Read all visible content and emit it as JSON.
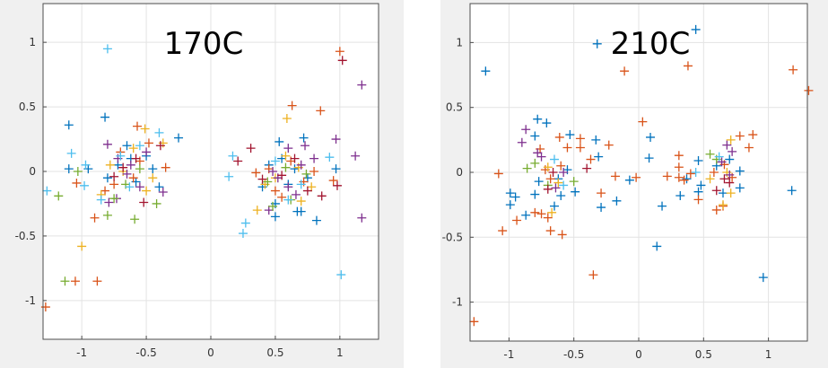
{
  "chart_data": [
    {
      "type": "scatter",
      "title": "170C",
      "xlim": [
        -1.3,
        1.3
      ],
      "ylim": [
        -1.3,
        1.3
      ],
      "xticks": [
        -1,
        -0.5,
        0,
        0.5,
        1
      ],
      "xtick_labels": [
        "-1",
        "-0.5",
        "0",
        "0.5",
        "1"
      ],
      "yticks": [
        1,
        0.5,
        0,
        -0.5,
        -1
      ],
      "ytick_labels": [
        "1",
        "0.5",
        "0",
        "-0.5",
        "-1"
      ],
      "grid": true,
      "marker": "plus",
      "series": [
        {
          "color": "#0072BD",
          "points": [
            [
              -0.82,
              0.42
            ],
            [
              -1.1,
              0.36
            ],
            [
              -1.1,
              0.02
            ],
            [
              -0.25,
              0.26
            ],
            [
              0.72,
              0.26
            ],
            [
              0.53,
              0.23
            ],
            [
              0.5,
              -0.35
            ],
            [
              0.67,
              -0.31
            ],
            [
              0.7,
              -0.31
            ],
            [
              0.82,
              -0.38
            ],
            [
              -0.95,
              0.02
            ],
            [
              0.97,
              0.02
            ],
            [
              0.5,
              -0.25
            ],
            [
              -0.4,
              -0.12
            ],
            [
              -0.65,
              0.2
            ],
            [
              -0.72,
              0.05
            ],
            [
              -0.58,
              -0.08
            ],
            [
              -0.5,
              0.12
            ],
            [
              -0.8,
              -0.05
            ],
            [
              -0.62,
              0.1
            ],
            [
              -0.45,
              0.02
            ],
            [
              0.45,
              0.05
            ],
            [
              0.6,
              -0.1
            ],
            [
              0.55,
              0.1
            ],
            [
              0.75,
              -0.05
            ],
            [
              0.4,
              -0.12
            ],
            [
              0.65,
              0.02
            ]
          ]
        },
        {
          "color": "#D95319",
          "points": [
            [
              -1.28,
              -1.05
            ],
            [
              -1.05,
              -0.85
            ],
            [
              -0.88,
              -0.85
            ],
            [
              -0.9,
              -0.36
            ],
            [
              -1.04,
              -0.09
            ],
            [
              0.63,
              0.51
            ],
            [
              0.85,
              0.47
            ],
            [
              1.0,
              0.93
            ],
            [
              -0.57,
              0.35
            ],
            [
              -0.35,
              0.03
            ],
            [
              0.95,
              -0.07
            ],
            [
              -0.82,
              -0.15
            ],
            [
              0.35,
              -0.01
            ],
            [
              -0.7,
              0.15
            ],
            [
              -0.6,
              -0.05
            ],
            [
              -0.48,
              0.22
            ],
            [
              -0.75,
              -0.1
            ],
            [
              -0.55,
              0.08
            ],
            [
              0.5,
              -0.15
            ],
            [
              0.62,
              0.08
            ],
            [
              0.72,
              -0.08
            ],
            [
              0.45,
              0.02
            ],
            [
              0.8,
              0.0
            ],
            [
              0.55,
              -0.2
            ]
          ]
        },
        {
          "color": "#EDB120",
          "points": [
            [
              -1.0,
              -0.58
            ],
            [
              0.59,
              0.41
            ],
            [
              0.36,
              -0.3
            ],
            [
              -0.51,
              0.33
            ],
            [
              -0.37,
              0.22
            ],
            [
              0.7,
              -0.23
            ],
            [
              -0.85,
              -0.18
            ],
            [
              0.5,
              -0.05
            ],
            [
              -0.5,
              -0.15
            ],
            [
              -0.68,
              0.0
            ],
            [
              -0.6,
              0.18
            ],
            [
              -0.78,
              0.05
            ],
            [
              -0.45,
              -0.05
            ],
            [
              0.58,
              0.12
            ],
            [
              0.68,
              0.03
            ],
            [
              0.42,
              -0.1
            ],
            [
              0.78,
              -0.12
            ]
          ]
        },
        {
          "color": "#7E2F8E",
          "points": [
            [
              1.17,
              0.67
            ],
            [
              1.17,
              -0.36
            ],
            [
              1.12,
              0.12
            ],
            [
              0.97,
              0.25
            ],
            [
              -0.37,
              -0.16
            ],
            [
              0.45,
              -0.3
            ],
            [
              -0.8,
              0.21
            ],
            [
              -0.79,
              -0.24
            ],
            [
              -0.73,
              -0.21
            ],
            [
              0.6,
              0.18
            ],
            [
              0.73,
              0.2
            ],
            [
              0.8,
              0.1
            ],
            [
              -0.65,
              -0.02
            ],
            [
              -0.55,
              -0.12
            ],
            [
              -0.72,
              0.1
            ],
            [
              -0.5,
              0.15
            ],
            [
              -0.62,
              0.05
            ],
            [
              0.52,
              -0.05
            ],
            [
              0.6,
              -0.12
            ],
            [
              0.7,
              0.05
            ],
            [
              0.48,
              0.0
            ],
            [
              0.66,
              -0.18
            ]
          ]
        },
        {
          "color": "#77AC30",
          "points": [
            [
              -1.13,
              -0.85
            ],
            [
              -1.18,
              -0.19
            ],
            [
              -0.8,
              -0.34
            ],
            [
              -0.59,
              -0.37
            ],
            [
              -0.42,
              -0.25
            ],
            [
              -1.03,
              0.0
            ],
            [
              -0.75,
              -0.21
            ],
            [
              0.48,
              -0.27
            ],
            [
              0.62,
              -0.22
            ],
            [
              -0.66,
              -0.1
            ],
            [
              -0.55,
              0.02
            ],
            [
              0.44,
              -0.08
            ],
            [
              0.58,
              0.03
            ],
            [
              0.74,
              -0.02
            ]
          ]
        },
        {
          "color": "#4DBEEE",
          "points": [
            [
              -0.8,
              0.95
            ],
            [
              -1.27,
              -0.15
            ],
            [
              -1.08,
              0.14
            ],
            [
              -0.98,
              -0.11
            ],
            [
              -0.97,
              0.05
            ],
            [
              -0.4,
              0.3
            ],
            [
              -0.55,
              0.2
            ],
            [
              0.14,
              -0.04
            ],
            [
              0.17,
              0.12
            ],
            [
              0.27,
              -0.4
            ],
            [
              0.25,
              -0.48
            ],
            [
              1.01,
              -0.8
            ],
            [
              0.92,
              0.11
            ],
            [
              -0.85,
              -0.22
            ],
            [
              0.6,
              -0.22
            ],
            [
              -0.63,
              -0.12
            ],
            [
              0.5,
              0.08
            ],
            [
              0.7,
              -0.1
            ],
            [
              -0.7,
              0.12
            ]
          ]
        },
        {
          "color": "#A2142F",
          "points": [
            [
              1.02,
              0.86
            ],
            [
              0.31,
              0.18
            ],
            [
              0.21,
              0.08
            ],
            [
              0.98,
              -0.11
            ],
            [
              0.86,
              -0.19
            ],
            [
              -0.52,
              -0.24
            ],
            [
              -0.39,
              0.2
            ],
            [
              0.75,
              -0.15
            ],
            [
              -0.68,
              0.03
            ],
            [
              -0.58,
              0.1
            ],
            [
              -0.75,
              -0.04
            ],
            [
              0.55,
              -0.03
            ],
            [
              0.65,
              0.1
            ],
            [
              0.4,
              -0.06
            ]
          ]
        }
      ]
    },
    {
      "type": "scatter",
      "title": "210C",
      "xlim": [
        -1.3,
        1.3
      ],
      "ylim": [
        -1.3,
        1.3
      ],
      "xticks": [
        -1,
        -0.5,
        0,
        0.5,
        1
      ],
      "xtick_labels": [
        "-1",
        "-0.5",
        "0",
        "0.5",
        "1"
      ],
      "yticks": [
        1,
        0.5,
        0,
        -0.5,
        -1
      ],
      "ytick_labels": [
        "1",
        "0.5",
        "0",
        "-0.5",
        "-1"
      ],
      "grid": true,
      "marker": "plus",
      "series": [
        {
          "color": "#0072BD",
          "points": [
            [
              -1.18,
              0.78
            ],
            [
              -0.32,
              0.99
            ],
            [
              0.44,
              1.1
            ],
            [
              -0.78,
              0.41
            ],
            [
              -0.71,
              0.38
            ],
            [
              -0.8,
              0.28
            ],
            [
              -0.53,
              0.29
            ],
            [
              -0.33,
              0.25
            ],
            [
              -0.31,
              0.12
            ],
            [
              0.09,
              0.27
            ],
            [
              0.08,
              0.11
            ],
            [
              -0.99,
              -0.16
            ],
            [
              -0.95,
              -0.19
            ],
            [
              -0.99,
              -0.25
            ],
            [
              -0.87,
              -0.33
            ],
            [
              -0.65,
              -0.26
            ],
            [
              -0.6,
              -0.18
            ],
            [
              -0.49,
              -0.15
            ],
            [
              -0.29,
              -0.27
            ],
            [
              -0.17,
              -0.22
            ],
            [
              -0.07,
              -0.06
            ],
            [
              0.14,
              -0.57
            ],
            [
              0.18,
              -0.26
            ],
            [
              0.32,
              -0.18
            ],
            [
              0.37,
              -0.05
            ],
            [
              0.46,
              -0.15
            ],
            [
              0.48,
              -0.1
            ],
            [
              0.46,
              0.09
            ],
            [
              0.78,
              0.01
            ],
            [
              0.78,
              -0.12
            ],
            [
              0.96,
              -0.81
            ],
            [
              1.18,
              -0.14
            ],
            [
              0.65,
              -0.16
            ],
            [
              -0.8,
              -0.17
            ],
            [
              -0.77,
              -0.07
            ],
            [
              -0.62,
              -0.05
            ],
            [
              -0.55,
              0.02
            ],
            [
              0.6,
              0.05
            ],
            [
              0.7,
              0.1
            ]
          ]
        },
        {
          "color": "#D95319",
          "points": [
            [
              -1.27,
              -1.15
            ],
            [
              -1.08,
              -0.01
            ],
            [
              -1.05,
              -0.45
            ],
            [
              -0.94,
              -0.37
            ],
            [
              -0.8,
              -0.31
            ],
            [
              -0.75,
              -0.32
            ],
            [
              -0.7,
              -0.35
            ],
            [
              -0.68,
              -0.45
            ],
            [
              -0.59,
              -0.48
            ],
            [
              -0.61,
              0.27
            ],
            [
              -0.55,
              0.19
            ],
            [
              -0.45,
              0.26
            ],
            [
              -0.45,
              0.19
            ],
            [
              -0.37,
              0.1
            ],
            [
              -0.23,
              0.21
            ],
            [
              -0.29,
              -0.16
            ],
            [
              -0.35,
              -0.79
            ],
            [
              -0.18,
              -0.03
            ],
            [
              -0.11,
              0.78
            ],
            [
              -0.02,
              -0.04
            ],
            [
              0.03,
              0.39
            ],
            [
              0.22,
              -0.03
            ],
            [
              0.31,
              0.13
            ],
            [
              0.31,
              0.04
            ],
            [
              0.31,
              -0.04
            ],
            [
              0.35,
              -0.06
            ],
            [
              0.38,
              0.82
            ],
            [
              0.4,
              -0.01
            ],
            [
              0.46,
              -0.21
            ],
            [
              0.6,
              -0.29
            ],
            [
              0.65,
              -0.26
            ],
            [
              0.78,
              0.28
            ],
            [
              0.85,
              0.19
            ],
            [
              0.88,
              0.29
            ],
            [
              1.19,
              0.79
            ],
            [
              1.31,
              0.63
            ],
            [
              -0.76,
              0.18
            ],
            [
              -0.68,
              -0.05
            ],
            [
              -0.6,
              0.05
            ],
            [
              -0.72,
              0.02
            ],
            [
              0.58,
              0.0
            ],
            [
              0.66,
              0.06
            ],
            [
              0.72,
              -0.04
            ]
          ]
        },
        {
          "color": "#EDB120",
          "points": [
            [
              -0.67,
              -0.31
            ],
            [
              0.71,
              0.25
            ],
            [
              0.65,
              -0.25
            ],
            [
              0.71,
              -0.16
            ],
            [
              -0.62,
              -0.08
            ],
            [
              -0.7,
              0.04
            ],
            [
              0.55,
              -0.05
            ],
            [
              0.68,
              0.0
            ]
          ]
        },
        {
          "color": "#7E2F8E",
          "points": [
            [
              -0.87,
              0.33
            ],
            [
              -0.9,
              0.23
            ],
            [
              -0.78,
              0.15
            ],
            [
              -0.75,
              0.12
            ],
            [
              0.68,
              0.21
            ],
            [
              0.72,
              0.16
            ],
            [
              -0.64,
              -0.12
            ],
            [
              -0.58,
              0.0
            ],
            [
              0.64,
              0.08
            ],
            [
              0.7,
              -0.02
            ]
          ]
        },
        {
          "color": "#77AC30",
          "points": [
            [
              -0.86,
              0.03
            ],
            [
              -0.8,
              0.07
            ],
            [
              -0.5,
              -0.07
            ],
            [
              0.55,
              0.14
            ],
            [
              -0.7,
              -0.1
            ],
            [
              0.6,
              0.1
            ]
          ]
        },
        {
          "color": "#4DBEEE",
          "points": [
            [
              -0.65,
              0.1
            ],
            [
              0.44,
              0.0
            ],
            [
              0.62,
              0.12
            ],
            [
              -0.58,
              -0.1
            ]
          ]
        },
        {
          "color": "#A2142F",
          "points": [
            [
              -0.4,
              0.03
            ],
            [
              -0.7,
              -0.13
            ],
            [
              0.6,
              -0.14
            ],
            [
              0.7,
              -0.08
            ],
            [
              -0.66,
              0.0
            ],
            [
              0.66,
              -0.05
            ]
          ]
        }
      ]
    }
  ]
}
